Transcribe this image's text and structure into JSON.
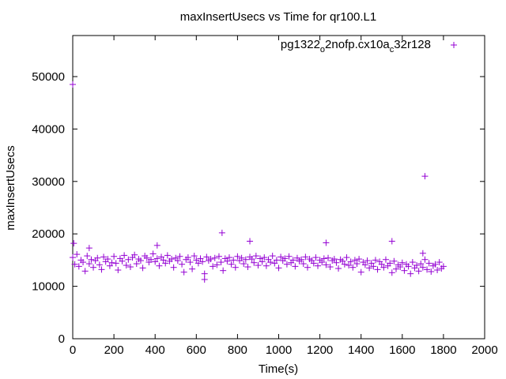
{
  "chart_data": {
    "type": "scatter",
    "title": "maxInsertUsecs vs Time for qr100.L1",
    "xlabel": "Time(s)",
    "ylabel": "maxInsertUsecs",
    "xlim": [
      0,
      2000
    ],
    "ylim": [
      0,
      57000
    ],
    "xticks": [
      "0",
      "200",
      "400",
      "600",
      "800",
      "1000",
      "1200",
      "1400",
      "1600",
      "1800",
      "2000"
    ],
    "yticks": [
      "0",
      "10000",
      "20000",
      "30000",
      "40000",
      "50000"
    ],
    "grid": false,
    "legend_position": "top-right",
    "series": [
      {
        "name_parts": [
          "pg1322",
          "o",
          "2nofp.cx10a",
          "c",
          "32r128"
        ],
        "color": "#9400d3",
        "marker": "plus",
        "x_start": 0,
        "x_step": 10,
        "y": [
          15500,
          14200,
          16100,
          13800,
          15000,
          14600,
          12900,
          15800,
          14300,
          15100,
          13600,
          14900,
          15400,
          14100,
          13200,
          15600,
          14700,
          15200,
          13900,
          14500,
          15700,
          14400,
          13100,
          15300,
          14800,
          15900,
          14000,
          15100,
          13700,
          15500,
          16000,
          14300,
          15200,
          14900,
          13500,
          15800,
          15400,
          14600,
          15100,
          16200,
          14700,
          15300,
          13900,
          15600,
          15000,
          14400,
          15900,
          14800,
          15200,
          13600,
          15400,
          14900,
          15700,
          14200,
          12700,
          15100,
          15500,
          14600,
          13300,
          15800,
          15000,
          14400,
          15300,
          14700,
          12400,
          15600,
          14900,
          15200,
          13800,
          15400,
          14100,
          15700,
          14600,
          13000,
          15300,
          14800,
          15500,
          14200,
          15000,
          13600,
          15700,
          14900,
          15400,
          14300,
          15100,
          13700,
          15600,
          15200,
          14500,
          15800,
          14000,
          15300,
          14700,
          15500,
          13900,
          15100,
          14600,
          15800,
          14400,
          15000,
          13500,
          15600,
          14900,
          15300,
          14200,
          15700,
          14500,
          15000,
          13800,
          15400,
          14800,
          15100,
          14300,
          15600,
          13600,
          15200,
          14900,
          14400,
          15500,
          13900,
          15000,
          14600,
          15300,
          14100,
          15400,
          13700,
          14900,
          15200,
          14500,
          13400,
          15100,
          14800,
          14200,
          15500,
          14000,
          14700,
          13600,
          15000,
          14300,
          15200,
          12700,
          14600,
          14100,
          14900,
          13500,
          14400,
          13800,
          15000,
          13200,
          14700,
          14200,
          13600,
          15100,
          13900,
          14400,
          12600,
          14800,
          13300,
          14100,
          13700,
          14500,
          13000,
          14200,
          13800,
          12400,
          14600,
          13500,
          14000,
          12900,
          14300,
          13600,
          15100,
          13200,
          14400,
          12800,
          13900,
          14200,
          13100,
          14600,
          13400,
          13800
        ],
        "outliers": [
          [
            0,
            48500
          ],
          [
            5,
            18200
          ],
          [
            80,
            17300
          ],
          [
            410,
            17800
          ],
          [
            725,
            20200
          ],
          [
            860,
            18600
          ],
          [
            1230,
            18300
          ],
          [
            1550,
            18600
          ],
          [
            1710,
            31000
          ],
          [
            1700,
            16300
          ],
          [
            640,
            11300
          ]
        ]
      }
    ]
  }
}
